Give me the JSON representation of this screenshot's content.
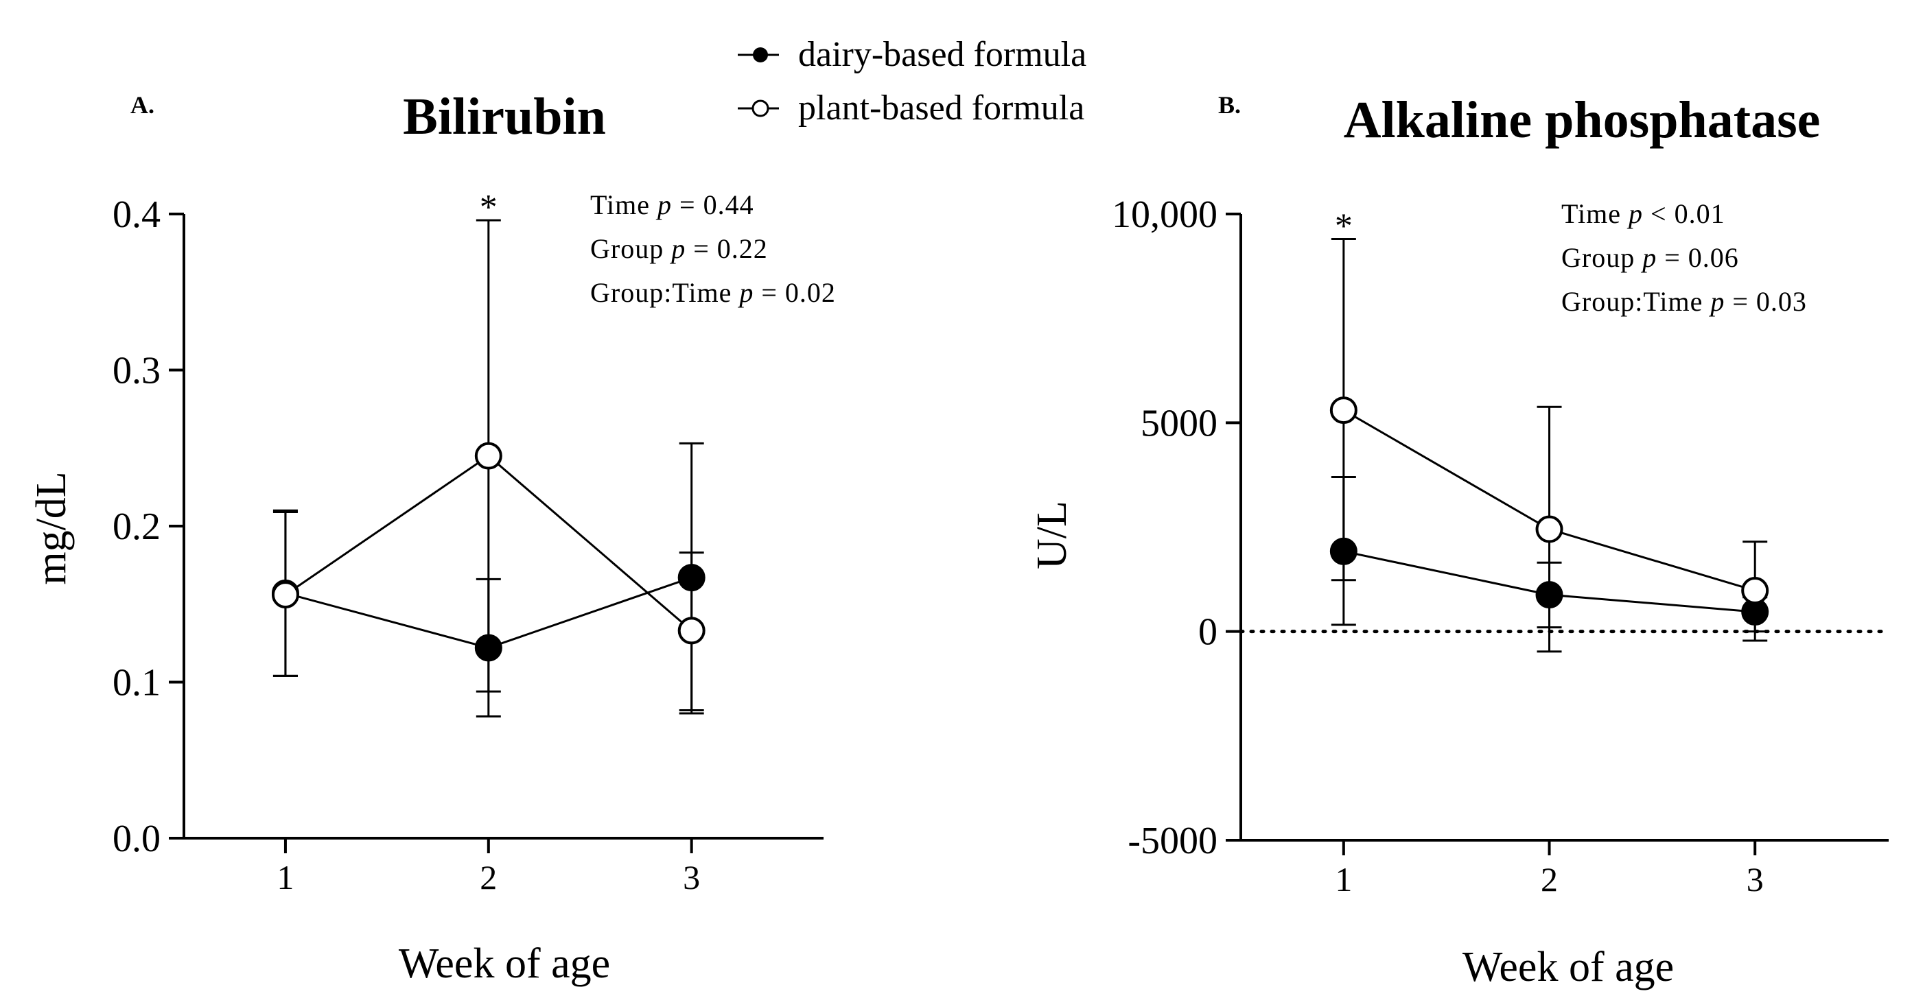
{
  "legend": {
    "placement": "top-center",
    "entries": [
      {
        "label": "dairy-based formula",
        "marker": "filled-circle",
        "color": "#000000"
      },
      {
        "label": "plant-based formula",
        "marker": "open-circle",
        "color": "#000000"
      }
    ]
  },
  "chart_data": [
    {
      "type": "line",
      "panel_label": "A.",
      "title": "Bilirubin",
      "xlabel": "Week of age",
      "ylabel": "mg/dL",
      "categories": [
        "1",
        "2",
        "3"
      ],
      "xlim": [
        0.5,
        3.65
      ],
      "ylim": [
        0.0,
        0.4
      ],
      "yticks": [
        0.0,
        0.1,
        0.2,
        0.3,
        0.4
      ],
      "ytick_labels": [
        "0.0",
        "0.1",
        "0.2",
        "0.3",
        "0.4"
      ],
      "zero_line": false,
      "series": [
        {
          "name": "dairy-based formula",
          "x": [
            1,
            2,
            3
          ],
          "values": [
            0.157,
            0.122,
            0.167
          ],
          "err_upper": [
            0.209,
            0.166,
            0.183
          ],
          "err_lower": [
            0.104,
            0.078,
            0.082
          ]
        },
        {
          "name": "plant-based formula",
          "x": [
            1,
            2,
            3
          ],
          "values": [
            0.156,
            0.245,
            0.133
          ],
          "err_upper": [
            0.21,
            0.396,
            0.253
          ],
          "err_lower": [
            0.104,
            0.094,
            0.08
          ]
        }
      ],
      "asterisks": [
        {
          "x": 2,
          "label": "*"
        }
      ],
      "stats": [
        {
          "prefix": "Time ",
          "p": "p",
          "rest": " = 0.44"
        },
        {
          "prefix": "Group ",
          "p": "p",
          "rest": "  = 0.22"
        },
        {
          "prefix": "Group:Time ",
          "p": "p",
          "rest": " = 0.02"
        }
      ]
    },
    {
      "type": "line",
      "panel_label": "B.",
      "title": "Alkaline phosphatase",
      "xlabel": "Week of age",
      "ylabel": "U/L",
      "categories": [
        "1",
        "2",
        "3"
      ],
      "xlim": [
        0.5,
        3.65
      ],
      "ylim": [
        -5000,
        10000
      ],
      "yticks": [
        -5000,
        0,
        5000,
        10000
      ],
      "ytick_labels": [
        "-5000",
        "0",
        "5000",
        "10,000"
      ],
      "zero_line": true,
      "series": [
        {
          "name": "dairy-based formula",
          "x": [
            1,
            2,
            3
          ],
          "values": [
            1920,
            880,
            470
          ],
          "err_upper": [
            3700,
            1650,
            820
          ],
          "err_lower": [
            160,
            -480,
            -220
          ]
        },
        {
          "name": "plant-based formula",
          "x": [
            1,
            2,
            3
          ],
          "values": [
            5300,
            2450,
            980
          ],
          "err_upper": [
            9400,
            5380,
            2150
          ],
          "err_lower": [
            1230,
            100,
            0
          ]
        }
      ],
      "asterisks": [
        {
          "x": 1,
          "label": "*"
        }
      ],
      "stats": [
        {
          "prefix": "Time ",
          "p": "p",
          "rest": " < 0.01"
        },
        {
          "prefix": "Group ",
          "p": "p",
          "rest": " = 0.06"
        },
        {
          "prefix": "Group:Time ",
          "p": "p",
          "rest": " = 0.03"
        }
      ]
    }
  ]
}
